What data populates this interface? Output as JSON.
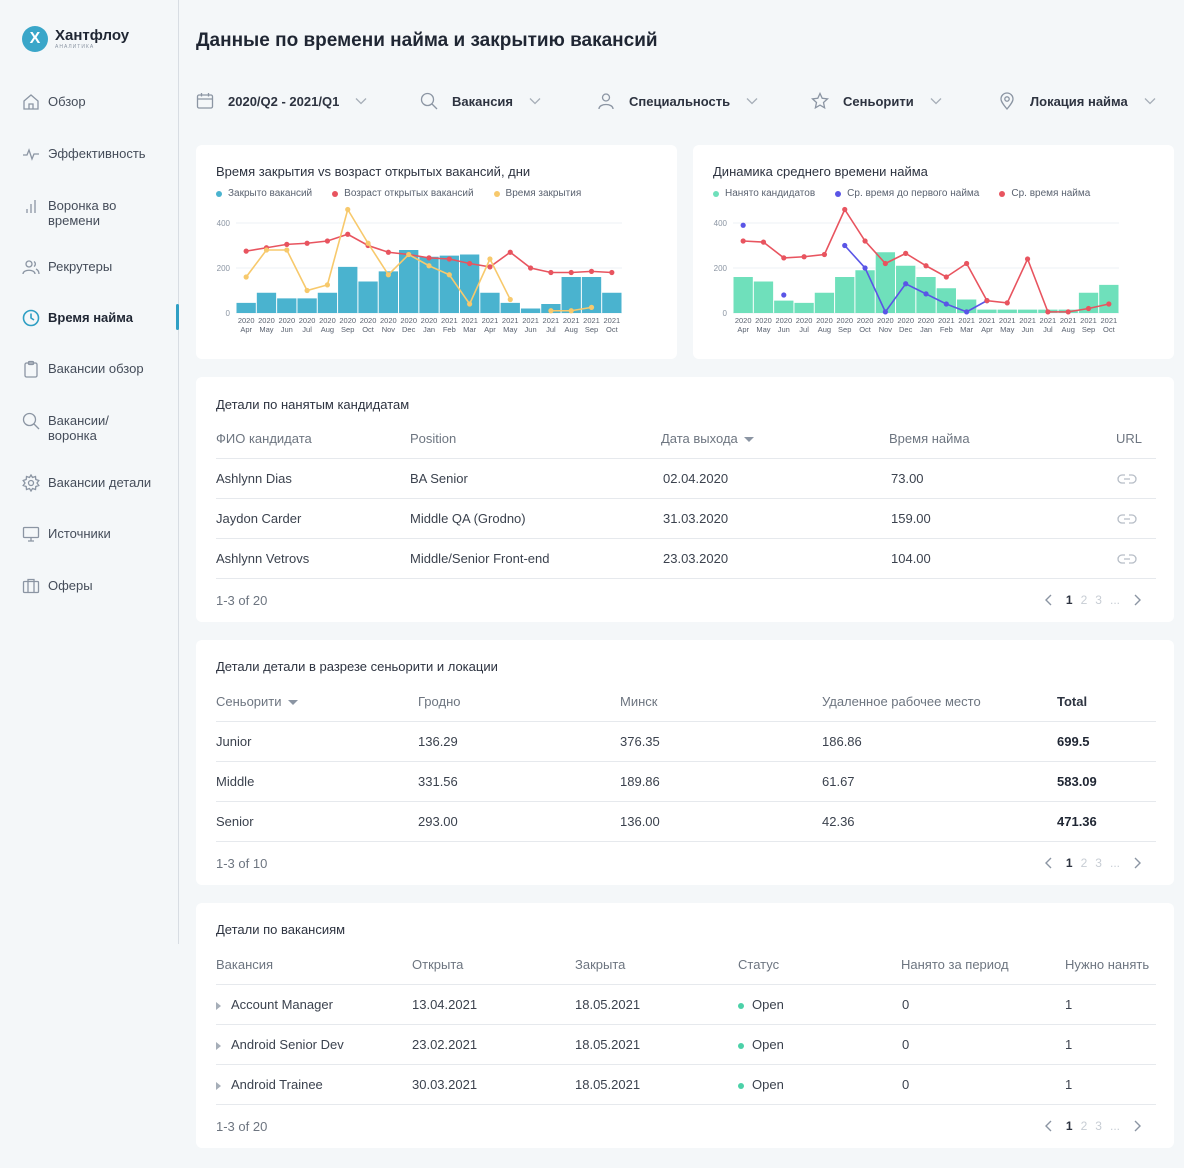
{
  "app": {
    "logo_letter": "X",
    "name": "Хантфлоу",
    "subtitle": "аналитика"
  },
  "sidebar": {
    "items": [
      {
        "label": "Обзор",
        "icon": "home-icon"
      },
      {
        "label": "Эффективность",
        "icon": "pulse-icon"
      },
      {
        "label": "Воронка во времени",
        "icon": "bars-icon"
      },
      {
        "label": "Рекрутеры",
        "icon": "users-icon"
      },
      {
        "label": "Время найма",
        "icon": "clock-icon",
        "active": true
      },
      {
        "label": "Вакансии обзор",
        "icon": "clipboard-icon"
      },
      {
        "label": "Вакансии/ воронка",
        "icon": "search-icon"
      },
      {
        "label": "Вакансии детали",
        "icon": "gear-icon"
      },
      {
        "label": "Источники",
        "icon": "monitor-icon"
      },
      {
        "label": "Оферы",
        "icon": "briefcase-icon"
      }
    ]
  },
  "header": {
    "title": "Данные по времени найма и закрытию вакансий"
  },
  "filters": [
    {
      "value": "2020/Q2 - 2021/Q1",
      "icon": "calendar-icon"
    },
    {
      "value": "Вакансия",
      "icon": "search-icon"
    },
    {
      "value": "Специальность",
      "icon": "user-icon"
    },
    {
      "value": "Сеньорити",
      "icon": "star-icon"
    },
    {
      "value": "Локация найма",
      "icon": "location-pin-icon"
    }
  ],
  "colors": {
    "blue": "#4ab3cf",
    "red": "#e8545f",
    "yellow": "#f7c96c",
    "green": "#6fe0bb",
    "purple": "#5a55e6",
    "accent": "#2f9fc4"
  },
  "chart_data": [
    {
      "type": "bar",
      "title": "Время закрытия vs возраст открытых вакансий, дни",
      "legend": [
        "Закрыто вакансий",
        "Возраст открытых вакансий",
        "Время закрытия"
      ],
      "x_years": [
        "2020",
        "2020",
        "2020",
        "2020",
        "2020",
        "2020",
        "2020",
        "2020",
        "2020",
        "2020",
        "2021",
        "2021",
        "2021",
        "2021",
        "2021",
        "2021",
        "2021",
        "2021",
        "2021"
      ],
      "x_months": [
        "Apr",
        "May",
        "Jun",
        "Jul",
        "Aug",
        "Sep",
        "Oct",
        "Nov",
        "Dec",
        "Jan",
        "Feb",
        "Mar",
        "Apr",
        "May",
        "Jun",
        "Jul",
        "Aug",
        "Sep",
        "Oct"
      ],
      "y_ticks": [
        "0",
        "200",
        "400"
      ],
      "ylim": [
        0,
        400
      ],
      "series": [
        {
          "name": "Закрыто вакансий",
          "kind": "bar",
          "color": "#4ab3cf",
          "values": [
            45,
            90,
            65,
            65,
            90,
            205,
            140,
            185,
            280,
            250,
            255,
            260,
            90,
            45,
            20,
            40,
            160,
            160,
            90
          ]
        },
        {
          "name": "Возраст открытых вакансий",
          "kind": "line",
          "color": "#e8545f",
          "values": [
            275,
            290,
            305,
            310,
            320,
            350,
            300,
            270,
            260,
            245,
            240,
            220,
            205,
            270,
            200,
            180,
            180,
            185,
            180
          ]
        },
        {
          "name": "Время закрытия",
          "kind": "line",
          "color": "#f7c96c",
          "values": [
            160,
            280,
            280,
            100,
            125,
            460,
            310,
            170,
            260,
            210,
            170,
            40,
            240,
            60,
            null,
            10,
            10,
            25,
            null
          ]
        }
      ]
    },
    {
      "type": "bar",
      "title": "Динамика среднего времени найма",
      "legend": [
        "Нанято кандидатов",
        "Ср. время до первого найма",
        "Ср. время найма"
      ],
      "x_years": [
        "2020",
        "2020",
        "2020",
        "2020",
        "2020",
        "2020",
        "2020",
        "2020",
        "2020",
        "2020",
        "2021",
        "2021",
        "2021",
        "2021",
        "2021",
        "2021",
        "2021",
        "2021",
        "2021"
      ],
      "x_months": [
        "Apr",
        "May",
        "Jun",
        "Jul",
        "Aug",
        "Sep",
        "Oct",
        "Nov",
        "Dec",
        "Jan",
        "Feb",
        "Mar",
        "Apr",
        "May",
        "Jun",
        "Jul",
        "Aug",
        "Sep",
        "Oct"
      ],
      "y_ticks": [
        "0",
        "200",
        "400"
      ],
      "ylim": [
        0,
        400
      ],
      "series": [
        {
          "name": "Нанято кандидатов",
          "kind": "bar",
          "color": "#6fe0bb",
          "values": [
            160,
            140,
            55,
            45,
            90,
            160,
            190,
            270,
            210,
            160,
            110,
            60,
            15,
            15,
            15,
            15,
            15,
            90,
            125
          ]
        },
        {
          "name": "Ср. время до первого найма",
          "kind": "line",
          "color": "#5a55e6",
          "values": [
            390,
            null,
            80,
            null,
            null,
            300,
            200,
            5,
            130,
            85,
            40,
            5,
            55,
            null,
            null,
            null,
            null,
            null,
            null
          ]
        },
        {
          "name": "Ср. время найма",
          "kind": "line",
          "color": "#e8545f",
          "values": [
            320,
            315,
            245,
            250,
            260,
            460,
            320,
            220,
            265,
            210,
            160,
            220,
            55,
            45,
            240,
            5,
            5,
            20,
            40
          ]
        }
      ]
    }
  ],
  "hired_table": {
    "title": "Детали по нанятым кандидатам",
    "columns": [
      "ФИО кандидата",
      "Position",
      "Дата выхода",
      "Время найма",
      "URL"
    ],
    "rows": [
      [
        "Ashlynn Dias",
        "BA Senior",
        "02.04.2020",
        "73.00"
      ],
      [
        "Jaydon Carder",
        "Middle QA (Grodno)",
        "31.03.2020",
        "159.00"
      ],
      [
        "Ashlynn Vetrovs",
        "Middle/Senior Front-end",
        "23.03.2020",
        "104.00"
      ]
    ],
    "count": "1-3 of 20",
    "pages": [
      "1",
      "2",
      "3",
      "..."
    ]
  },
  "seniority_table": {
    "title": "Детали детали в разрезе сеньорити и локации",
    "columns": [
      "Сеньорити",
      "Гродно",
      "Минск",
      "Удаленное рабочее место",
      "Total"
    ],
    "rows": [
      [
        "Junior",
        "136.29",
        "376.35",
        "186.86",
        "699.5"
      ],
      [
        "Middle",
        "331.56",
        "189.86",
        "61.67",
        "583.09"
      ],
      [
        "Senior",
        "293.00",
        "136.00",
        "42.36",
        "471.36"
      ]
    ],
    "count": "1-3 of 10",
    "pages": [
      "1",
      "2",
      "3",
      "..."
    ]
  },
  "vacancies_table": {
    "title": "Детали по вакансиям",
    "columns": [
      "Вакансия",
      "Открыта",
      "Закрыта",
      "Статус",
      "Нанято за период",
      "Нужно нанять"
    ],
    "rows": [
      [
        "Account Manager",
        "13.04.2021",
        "18.05.2021",
        "Open",
        "0",
        "1"
      ],
      [
        "Android Senior Dev",
        "23.02.2021",
        "18.05.2021",
        "Open",
        "0",
        "1"
      ],
      [
        "Android Trainee",
        "30.03.2021",
        "18.05.2021",
        "Open",
        "0",
        "1"
      ]
    ],
    "count": "1-3 of 20",
    "pages": [
      "1",
      "2",
      "3",
      "..."
    ]
  }
}
